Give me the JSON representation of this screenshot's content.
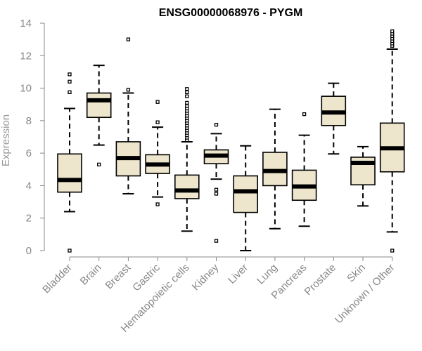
{
  "chart_data": {
    "type": "boxplot",
    "title": "ENSG00000068976 - PYGM",
    "xlabel": "",
    "ylabel": "Expression",
    "ylim": [
      0,
      14
    ],
    "yticks": [
      0,
      2,
      4,
      6,
      8,
      10,
      12,
      14
    ],
    "box_fill": "#ede5cc",
    "categories": [
      "Bladder",
      "Brain",
      "Breast",
      "Gastric",
      "Hematopoietic cells",
      "Kidney",
      "Liver",
      "Lung",
      "Pancreas",
      "Prostate",
      "Skin",
      "Unknown / Other"
    ],
    "stats": [
      {
        "min": 2.4,
        "q1": 3.6,
        "median": 4.35,
        "q3": 5.95,
        "max": 8.75,
        "outliers": [
          0.0,
          9.75,
          10.4,
          10.85
        ]
      },
      {
        "min": 6.5,
        "q1": 8.2,
        "median": 9.25,
        "q3": 9.7,
        "max": 11.4,
        "outliers": [
          5.3
        ]
      },
      {
        "min": 3.5,
        "q1": 4.6,
        "median": 5.7,
        "q3": 6.7,
        "max": 9.7,
        "outliers": [
          9.9,
          13.0
        ]
      },
      {
        "min": 3.3,
        "q1": 4.75,
        "median": 5.3,
        "q3": 5.9,
        "max": 7.6,
        "outliers": [
          2.85,
          7.9,
          9.15
        ]
      },
      {
        "min": 1.2,
        "q1": 3.2,
        "median": 3.7,
        "q3": 4.65,
        "max": 6.7,
        "outliers": [
          6.8,
          6.95,
          7.1,
          7.25,
          7.4,
          7.55,
          7.7,
          7.85,
          8.0,
          8.15,
          8.3,
          8.45,
          8.6,
          8.75,
          8.9,
          9.1,
          9.5,
          9.75,
          9.95
        ]
      },
      {
        "min": 4.4,
        "q1": 5.35,
        "median": 5.85,
        "q3": 6.2,
        "max": 7.2,
        "outliers": [
          0.6,
          3.5,
          3.75,
          7.75
        ]
      },
      {
        "min": 0.0,
        "q1": 2.35,
        "median": 3.65,
        "q3": 4.6,
        "max": 6.45,
        "outliers": []
      },
      {
        "min": 1.35,
        "q1": 4.0,
        "median": 4.9,
        "q3": 6.05,
        "max": 8.7,
        "outliers": []
      },
      {
        "min": 1.5,
        "q1": 3.1,
        "median": 3.95,
        "q3": 4.95,
        "max": 7.1,
        "outliers": [
          8.4
        ]
      },
      {
        "min": 5.95,
        "q1": 7.7,
        "median": 8.5,
        "q3": 9.5,
        "max": 10.3,
        "outliers": []
      },
      {
        "min": 2.75,
        "q1": 4.05,
        "median": 5.4,
        "q3": 5.75,
        "max": 6.4,
        "outliers": []
      },
      {
        "min": 1.15,
        "q1": 4.85,
        "median": 6.3,
        "q3": 7.85,
        "max": 12.4,
        "outliers": [
          0.0,
          12.6,
          12.75,
          12.9,
          13.05,
          13.2,
          13.35,
          13.5
        ]
      }
    ]
  }
}
